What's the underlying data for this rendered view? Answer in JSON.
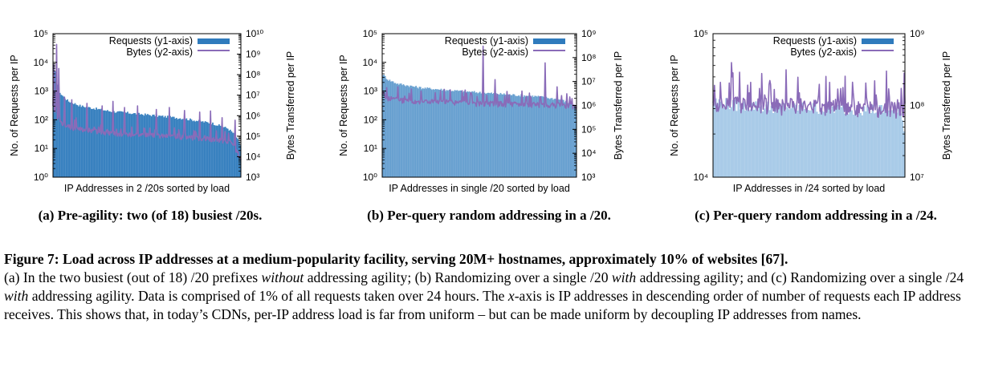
{
  "chart_data": [
    {
      "type": "bar",
      "panel": "a",
      "subcaption": "(a) Pre-agility: two (of 18) busiest /20s.",
      "xlabel": "IP Addresses in 2 /20s sorted by load",
      "ylabel": "No. of Requests per IP",
      "y2label": "Bytes Transferred per IP",
      "yscale": "log",
      "ylim": [
        1,
        100000
      ],
      "y2scale": "log",
      "y2lim": [
        1000,
        10000000000
      ],
      "yticks": [
        "10⁰",
        "10¹",
        "10²",
        "10³",
        "10⁴",
        "10⁵"
      ],
      "y2ticks": [
        "10³",
        "10⁴",
        "10⁵",
        "10⁶",
        "10⁷",
        "10⁸",
        "10⁹",
        "10¹⁰"
      ],
      "legend_position": "top-right",
      "series": [
        {
          "name": "Requests (y1-axis)",
          "axis": "y1",
          "style": "bars",
          "profile": [
            [
              0,
              10000
            ],
            [
              0.02,
              2000
            ],
            [
              0.04,
              800
            ],
            [
              0.08,
              450
            ],
            [
              0.15,
              300
            ],
            [
              0.3,
              200
            ],
            [
              0.5,
              150
            ],
            [
              0.7,
              110
            ],
            [
              0.85,
              75
            ],
            [
              0.93,
              50
            ],
            [
              0.97,
              30
            ],
            [
              1,
              12
            ]
          ]
        },
        {
          "name": "Bytes (y2-axis)",
          "axis": "y2",
          "style": "line",
          "profile": [
            [
              0,
              3000000
            ],
            [
              0.02,
              800000
            ],
            [
              0.05,
              400000
            ],
            [
              0.1,
              260000
            ],
            [
              0.3,
              140000
            ],
            [
              0.5,
              110000
            ],
            [
              0.7,
              90000
            ],
            [
              0.85,
              70000
            ],
            [
              0.95,
              50000
            ],
            [
              1,
              8000
            ]
          ],
          "spikes": [
            [
              0.005,
              300000000
            ],
            [
              0.02,
              3000000000
            ],
            [
              0.03,
              200000000
            ],
            [
              0.06,
              8000000
            ],
            [
              0.1,
              6000000
            ],
            [
              0.18,
              4000000
            ],
            [
              0.26,
              3000000
            ],
            [
              0.32,
              5000000
            ],
            [
              0.38,
              2500000
            ],
            [
              0.45,
              3000000
            ],
            [
              0.55,
              2000000
            ],
            [
              0.62,
              2500000
            ],
            [
              0.7,
              1800000
            ],
            [
              0.78,
              1500000
            ],
            [
              0.84,
              1700000
            ],
            [
              0.9,
              800000
            ],
            [
              0.97,
              600000
            ]
          ]
        }
      ]
    },
    {
      "type": "bar",
      "panel": "b",
      "subcaption": "(b) Per-query random addressing in a /20.",
      "xlabel": "IP Addresses in single /20 sorted by load",
      "ylabel": "No. of Requests per IP",
      "y2label": "Bytes Transferred per IP",
      "yscale": "log",
      "ylim": [
        1,
        100000
      ],
      "y2scale": "log",
      "y2lim": [
        1000,
        1000000000
      ],
      "yticks": [
        "10⁰",
        "10¹",
        "10²",
        "10³",
        "10⁴",
        "10⁵"
      ],
      "y2ticks": [
        "10³",
        "10⁴",
        "10⁵",
        "10⁶",
        "10⁷",
        "10⁸",
        "10⁹"
      ],
      "legend_position": "top-right",
      "series": [
        {
          "name": "Requests (y1-axis)",
          "axis": "y1",
          "style": "bars",
          "profile": [
            [
              0,
              4000
            ],
            [
              0.03,
              2500
            ],
            [
              0.08,
              1800
            ],
            [
              0.2,
              1300
            ],
            [
              0.4,
              1000
            ],
            [
              0.6,
              800
            ],
            [
              0.8,
              650
            ],
            [
              0.92,
              500
            ],
            [
              1,
              300
            ]
          ]
        },
        {
          "name": "Bytes (y2-axis)",
          "axis": "y2",
          "style": "line",
          "profile": [
            [
              0,
              3000000
            ],
            [
              0.03,
              2000000
            ],
            [
              0.1,
              1600000
            ],
            [
              0.3,
              1400000
            ],
            [
              0.5,
              1200000
            ],
            [
              0.7,
              1100000
            ],
            [
              0.9,
              1000000
            ],
            [
              1,
              900000
            ]
          ],
          "spikes": [
            [
              0.08,
              6000000
            ],
            [
              0.2,
              4000000
            ],
            [
              0.35,
              4500000
            ],
            [
              0.52,
              300000000
            ],
            [
              0.58,
              12000000
            ],
            [
              0.72,
              4000000
            ],
            [
              0.84,
              60000000
            ],
            [
              0.9,
              6000000
            ]
          ]
        }
      ]
    },
    {
      "type": "bar",
      "panel": "c",
      "subcaption": "(c) Per-query random addressing in a /24.",
      "xlabel": "IP Addresses in /24 sorted by load",
      "ylabel": "No. of Requests per IP",
      "y2label": "Bytes Transferred per IP",
      "yscale": "log",
      "ylim": [
        10000,
        100000
      ],
      "y2scale": "log",
      "y2lim": [
        10000000,
        1000000000
      ],
      "yticks": [
        "10⁴",
        "10⁵"
      ],
      "y2ticks": [
        "10⁷",
        "10⁸",
        "10⁹"
      ],
      "legend_position": "top-right",
      "series": [
        {
          "name": "Requests (y1-axis)",
          "axis": "y1",
          "style": "bars",
          "profile": [
            [
              0,
              34000
            ],
            [
              0.1,
              32000
            ],
            [
              0.3,
              31000
            ],
            [
              0.5,
              30500
            ],
            [
              0.7,
              30000
            ],
            [
              0.9,
              29500
            ],
            [
              0.97,
              28500
            ],
            [
              1,
              22000
            ]
          ]
        },
        {
          "name": "Bytes (y2-axis)",
          "axis": "y2",
          "style": "line",
          "profile": [
            [
              0,
              110000000
            ],
            [
              0.2,
              100000000
            ],
            [
              0.5,
              95000000
            ],
            [
              0.8,
              92000000
            ],
            [
              1,
              85000000
            ]
          ],
          "spikes": [
            [
              0.04,
              210000000
            ],
            [
              0.19,
              150000000
            ],
            [
              0.27,
              140000000
            ],
            [
              0.45,
              150000000
            ],
            [
              0.55,
              140000000
            ],
            [
              0.73,
              150000000
            ],
            [
              0.8,
              130000000
            ],
            [
              0.85,
              140000000
            ],
            [
              0.92,
              130000000
            ],
            [
              0.96,
              120000000
            ]
          ]
        }
      ]
    }
  ],
  "caption": {
    "title": "Figure 7: Load across IP addresses at a medium-popularity facility, serving 20M+ hostnames, approximately 10% of websites [67].",
    "body_parts": [
      {
        "text": "(a) In the two busiest (out of 18) /20 prefixes ",
        "italic": false
      },
      {
        "text": "without",
        "italic": true
      },
      {
        "text": " addressing agility; (b) Randomizing over a single /20 ",
        "italic": false
      },
      {
        "text": "with",
        "italic": true
      },
      {
        "text": " addressing agility; and (c) Randomizing over a single /24 ",
        "italic": false
      },
      {
        "text": "with",
        "italic": true
      },
      {
        "text": " addressing agility. Data is comprised of 1% of all requests taken over 24 hours. The ",
        "italic": false
      },
      {
        "text": "x",
        "italic": true
      },
      {
        "text": "-axis is IP addresses in descending order of number of requests each IP address receives. This shows that, in today’s CDNs, per-IP address load is far from uniform – but can be made uniform by decoupling IP addresses from names.",
        "italic": false
      }
    ]
  },
  "colors": {
    "requests_bar": "#2f7bbd",
    "requests_bar_light": "#9cc3e4",
    "bytes_line": "#8a6bb8",
    "axis": "#000000"
  }
}
